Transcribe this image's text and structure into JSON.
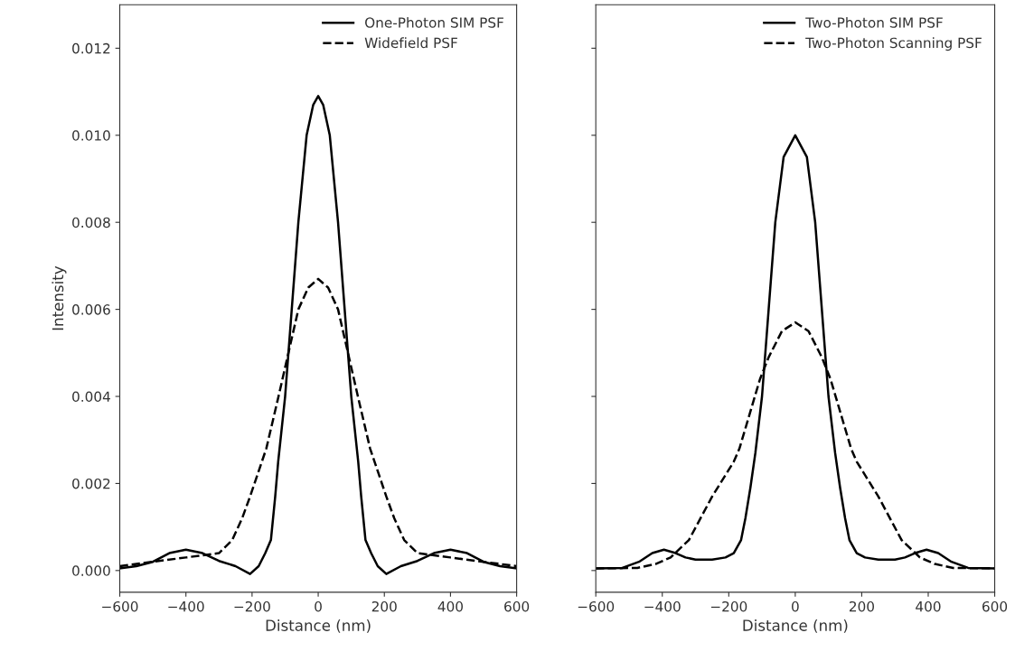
{
  "chart_data": [
    {
      "type": "line",
      "xlabel": "Distance (nm)",
      "ylabel": "Intensity",
      "xlim": [
        -600,
        600
      ],
      "ylim": [
        -0.0005,
        0.013
      ],
      "xticks": [
        {
          "value": -600,
          "label": "−600"
        },
        {
          "value": -400,
          "label": "−400"
        },
        {
          "value": -200,
          "label": "−200"
        },
        0,
        200,
        400,
        600
      ],
      "yticks": [
        {
          "value": 0,
          "label": "0.000"
        },
        {
          "value": 0.002,
          "label": "0.002"
        },
        {
          "value": 0.004,
          "label": "0.004"
        },
        {
          "value": 0.006,
          "label": "0.006"
        },
        {
          "value": 0.008,
          "label": "0.008"
        },
        {
          "value": 0.01,
          "label": "0.010"
        },
        {
          "value": 0.012,
          "label": "0.012"
        }
      ],
      "grid": false,
      "legend": "top right",
      "marker": "none",
      "series": [
        {
          "name": "One-Photon SIM PSF",
          "color": "#000000",
          "line_style": "solid",
          "x": [
            -600,
            -550,
            -500,
            -450,
            -400,
            -350,
            -300,
            -250,
            -206,
            -180,
            -160,
            -143,
            -130,
            -121,
            -100,
            -80,
            -60,
            -35,
            -15,
            0,
            15,
            35,
            60,
            80,
            100,
            121,
            130,
            143,
            160,
            180,
            206,
            250,
            300,
            350,
            400,
            450,
            500,
            550,
            600
          ],
          "values": [
            5e-05,
            0.0001,
            0.0002,
            0.0004,
            0.00048,
            0.0004,
            0.00022,
            0.0001,
            -8e-05,
            0.0001,
            0.0004,
            0.0007,
            0.0017,
            0.0025,
            0.004,
            0.006,
            0.008,
            0.01,
            0.0107,
            0.0109,
            0.0107,
            0.01,
            0.008,
            0.006,
            0.004,
            0.0025,
            0.0017,
            0.0007,
            0.0004,
            0.0001,
            -8e-05,
            0.0001,
            0.00022,
            0.0004,
            0.00048,
            0.0004,
            0.0002,
            0.0001,
            5e-05
          ]
        },
        {
          "name": "Widefield PSF",
          "color": "#000000",
          "line_style": "dashed",
          "x": [
            -600,
            -500,
            -400,
            -300,
            -260,
            -230,
            -206,
            -157,
            -120,
            -90,
            -60,
            -30,
            0,
            30,
            60,
            90,
            120,
            157,
            206,
            230,
            260,
            300,
            400,
            500,
            600
          ],
          "values": [
            0.0001,
            0.0002,
            0.0003,
            0.0004,
            0.0007,
            0.0012,
            0.0017,
            0.0028,
            0.004,
            0.005,
            0.006,
            0.0065,
            0.0067,
            0.0065,
            0.006,
            0.005,
            0.004,
            0.0028,
            0.0017,
            0.0012,
            0.0007,
            0.0004,
            0.0003,
            0.0002,
            0.0001
          ]
        }
      ]
    },
    {
      "type": "line",
      "xlabel": "Distance (nm)",
      "xlim": [
        -600,
        600
      ],
      "ylim": [
        -0.0005,
        0.013
      ],
      "tick_labels": "x",
      "xticks": [
        {
          "value": -600,
          "label": "−600"
        },
        {
          "value": -400,
          "label": "−400"
        },
        {
          "value": -200,
          "label": "−200"
        },
        0,
        200,
        400,
        600
      ],
      "yticks": [
        {
          "value": 0,
          "label": null
        },
        {
          "value": 0.002,
          "label": null
        },
        {
          "value": 0.004,
          "label": null
        },
        {
          "value": 0.006,
          "label": null
        },
        {
          "value": 0.008,
          "label": null
        },
        {
          "value": 0.01,
          "label": null
        },
        {
          "value": 0.012,
          "label": null
        }
      ],
      "grid": false,
      "legend": "top right",
      "marker": "none",
      "series": [
        {
          "name": "Two-Photon SIM PSF",
          "color": "#000000",
          "line_style": "solid",
          "x": [
            -600,
            -520,
            -470,
            -430,
            -395,
            -360,
            -330,
            -300,
            -250,
            -210,
            -185,
            -163,
            -150,
            -135,
            -120,
            -100,
            -80,
            -60,
            -35,
            0,
            35,
            60,
            80,
            100,
            120,
            135,
            150,
            163,
            185,
            210,
            250,
            300,
            330,
            360,
            395,
            430,
            470,
            520,
            600
          ],
          "values": [
            5e-05,
            6e-05,
            0.0002,
            0.0004,
            0.00048,
            0.0004,
            0.0003,
            0.00025,
            0.00025,
            0.0003,
            0.0004,
            0.0007,
            0.0012,
            0.0019,
            0.0027,
            0.004,
            0.006,
            0.008,
            0.0095,
            0.01,
            0.0095,
            0.008,
            0.006,
            0.004,
            0.0027,
            0.0019,
            0.0012,
            0.0007,
            0.0004,
            0.0003,
            0.00025,
            0.00025,
            0.0003,
            0.0004,
            0.00048,
            0.0004,
            0.0002,
            6e-05,
            5e-05
          ]
        },
        {
          "name": "Two-Photon Scanning PSF",
          "color": "#000000",
          "line_style": "dashed",
          "x": [
            -600,
            -475,
            -420,
            -375,
            -320,
            -250,
            -185,
            -168,
            -106,
            -80,
            -40,
            0,
            40,
            80,
            106,
            168,
            185,
            250,
            320,
            375,
            420,
            475,
            600
          ],
          "values": [
            5e-05,
            6e-05,
            0.00015,
            0.0003,
            0.0007,
            0.0017,
            0.0025,
            0.0028,
            0.0044,
            0.0049,
            0.0055,
            0.0057,
            0.0055,
            0.0049,
            0.0044,
            0.0028,
            0.0025,
            0.0017,
            0.0007,
            0.0003,
            0.00015,
            6e-05,
            5e-05
          ]
        }
      ]
    }
  ]
}
